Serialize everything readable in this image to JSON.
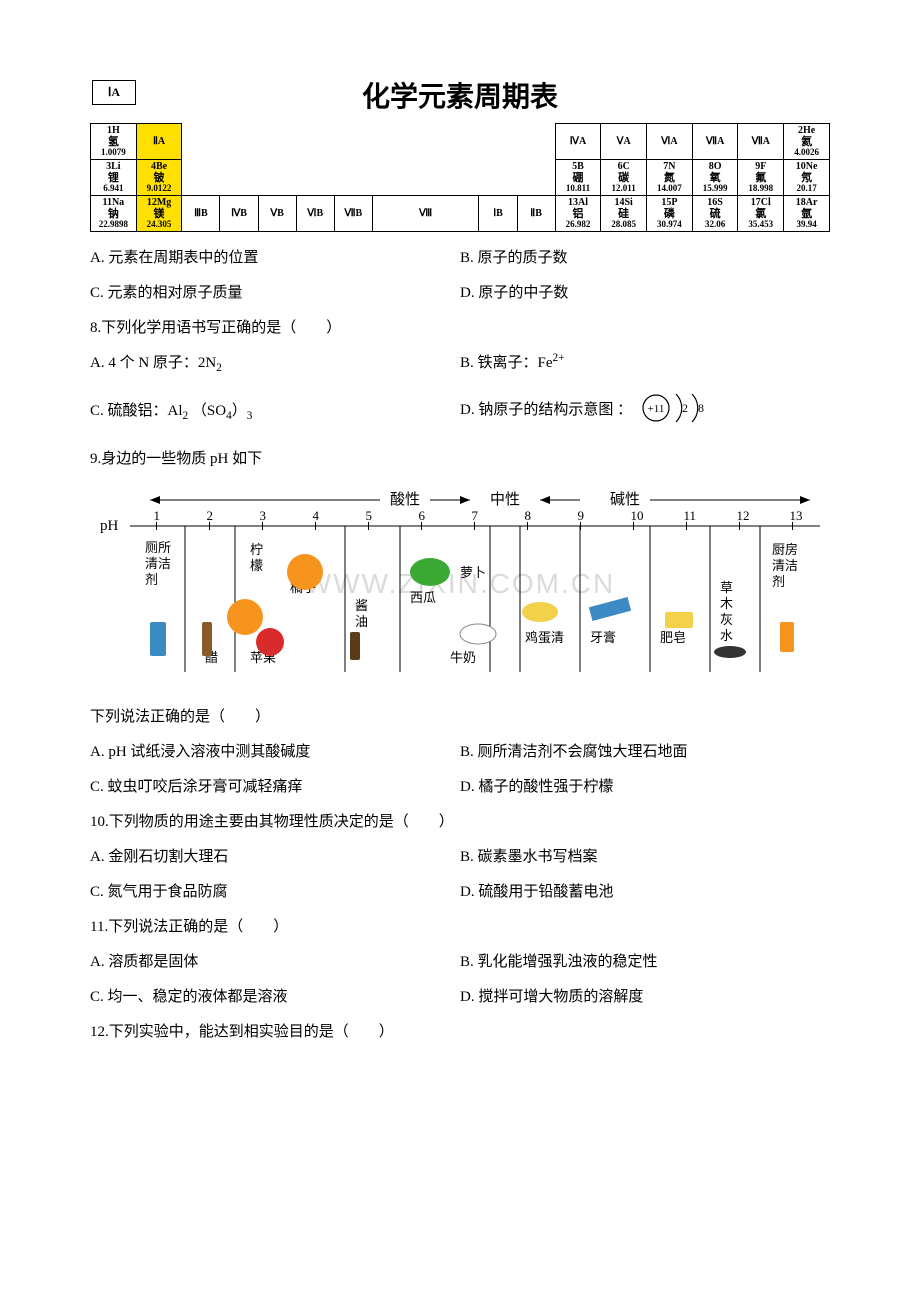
{
  "periodic_table": {
    "title": "化学元素周期表",
    "header_IA": "ⅠA",
    "groups": [
      "ⅡA",
      "ⅢB",
      "ⅣB",
      "ⅤB",
      "ⅥB",
      "ⅦB",
      "Ⅷ",
      "ⅠB",
      "ⅡB",
      "ⅢA",
      "ⅣA",
      "ⅤA",
      "ⅥA",
      "ⅦA"
    ],
    "row1": {
      "H": {
        "num": "1H",
        "name": "氢",
        "mass": "1.0079"
      },
      "He": {
        "num": "2He",
        "name": "氦",
        "mass": "4.0026"
      }
    },
    "row2": {
      "Li": {
        "num": "3Li",
        "name": "锂",
        "mass": "6.941"
      },
      "Be": {
        "num": "4Be",
        "name": "铍",
        "mass": "9.0122"
      },
      "B": {
        "num": "5B",
        "name": "硼",
        "mass": "10.811"
      },
      "C": {
        "num": "6C",
        "name": "碳",
        "mass": "12.011"
      },
      "N": {
        "num": "7N",
        "name": "氮",
        "mass": "14.007"
      },
      "O": {
        "num": "8O",
        "name": "氧",
        "mass": "15.999"
      },
      "F": {
        "num": "9F",
        "name": "氟",
        "mass": "18.998"
      },
      "Ne": {
        "num": "10Ne",
        "name": "氖",
        "mass": "20.17"
      }
    },
    "row3": {
      "Na": {
        "num": "11Na",
        "name": "钠",
        "mass": "22.9898"
      },
      "Mg": {
        "num": "12Mg",
        "name": "镁",
        "mass": "24.305"
      },
      "Al": {
        "num": "13Al",
        "name": "铝",
        "mass": "26.982"
      },
      "Si": {
        "num": "14Si",
        "name": "硅",
        "mass": "28.085"
      },
      "P": {
        "num": "15P",
        "name": "磷",
        "mass": "30.974"
      },
      "S": {
        "num": "16S",
        "name": "硫",
        "mass": "32.06"
      },
      "Cl": {
        "num": "17Cl",
        "name": "氯",
        "mass": "35.453"
      },
      "Ar": {
        "num": "18Ar",
        "name": "氩",
        "mass": "39.94"
      }
    }
  },
  "q7": {
    "A": "A.  元素在周期表中的位置",
    "B": "B.  原子的质子数",
    "C": "C.  元素的相对原子质量",
    "D": "D.  原子的中子数"
  },
  "q8": {
    "stem": "8.下列化学用语书写正确的是（　　）",
    "A_pre": "A.  4 个 N 原子：2N",
    "A_sub": "2",
    "B_pre": "B.  铁离子：Fe",
    "B_sup": "2+",
    "C_pre": "C.  硫酸铝：Al",
    "C_sub1": "2",
    "C_mid": "  （SO",
    "C_sub2": "4",
    "C_post": "）",
    "C_sub3": "3",
    "D": "D.  钠原子的结构示意图 ：",
    "atom_core": "+11",
    "atom_s1": "2",
    "atom_s2": "8"
  },
  "q9": {
    "stem": "9.身边的一些物质 pH 如下",
    "result_line": "下列说法正确的是（　　）",
    "A": "A. pH 试纸浸入溶液中测其酸碱度",
    "B": "B. 厕所清洁剂不会腐蚀大理石地面",
    "C": "C. 蚊虫叮咬后涂牙膏可减轻痛痒",
    "D": "D. 橘子的酸性强于柠檬",
    "labels": {
      "acid": "酸性",
      "neutral": "中性",
      "basic": "碱性",
      "ph": "pH"
    },
    "ticks": [
      "1",
      "2",
      "3",
      "4",
      "5",
      "6",
      "7",
      "8",
      "9",
      "10",
      "11",
      "12",
      "13"
    ],
    "items": [
      "厕所\n清洁\n剂",
      "醋",
      "柠\n檬",
      "橘子",
      "苹果",
      "酱\n油",
      "西瓜",
      "萝卜",
      "牛奶",
      "鸡蛋清",
      "牙膏",
      "肥皂",
      "草\n木\n灰\n水",
      "厨房\n清洁\n剂"
    ],
    "watermark": "WWW.ZIXIN.COM.CN"
  },
  "q10": {
    "stem": "10.下列物质的用途主要由其物理性质决定的是（　　）",
    "A": "A.  金刚石切割大理石",
    "B": "B.  碳素墨水书写档案",
    "C": "C.  氮气用于食品防腐",
    "D": "D.  硫酸用于铅酸蓄电池"
  },
  "q11": {
    "stem": "11.下列说法正确的是（　　）",
    "A": "A.  溶质都是固体",
    "B": "B.  乳化能增强乳浊液的稳定性",
    "C": "C.  均一、稳定的液体都是溶液",
    "D": "D.  搅拌可增大物质的溶解度"
  },
  "q12": {
    "stem": "12.下列实验中，能达到相实验目的是（　　）"
  },
  "colors": {
    "highlight": "#ffe000",
    "text": "#000000",
    "bg": "#ffffff",
    "wm": "#cccccc",
    "icon_orange": "#f7941d",
    "icon_red": "#d92b2b",
    "icon_green": "#3aaa35",
    "icon_blue": "#3b8ac4",
    "icon_brown": "#8b5a2b",
    "icon_yellow": "#f2d24a",
    "icon_grey": "#888888"
  }
}
